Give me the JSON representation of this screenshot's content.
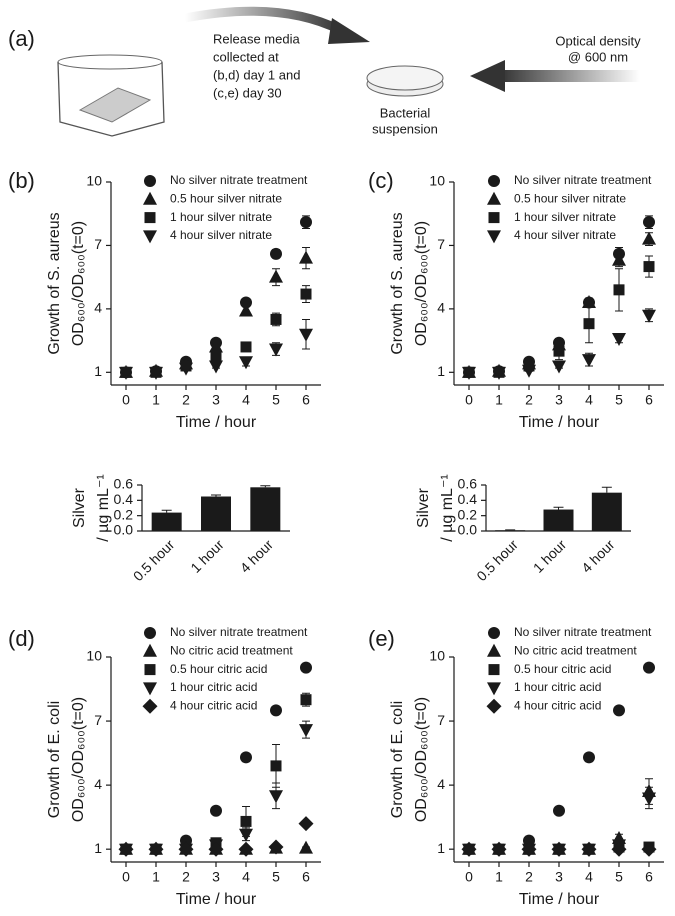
{
  "diagram": {
    "label": "(a)",
    "release_text": [
      "Release media",
      "collected at",
      "(b,d) day 1 and",
      "(c,e) day 30"
    ],
    "od_text": [
      "Optical density",
      "@ 600 nm"
    ],
    "suspension_text": [
      "Bacterial",
      "suspension"
    ]
  },
  "chart_data": [
    {
      "type": "scatter",
      "panel_label": "(b)",
      "xlabel": "Time / hour",
      "ylabel": [
        "Growth of S. aureus",
        "OD₆₀₀/OD₆₀₀(t=0)"
      ],
      "x": [
        0,
        1,
        2,
        3,
        4,
        5,
        6
      ],
      "xlim": [
        -0.5,
        6.5
      ],
      "xticks": [
        0,
        1,
        2,
        3,
        4,
        5,
        6
      ],
      "ylim": [
        0.4,
        10
      ],
      "yticks": [
        1,
        4,
        7,
        10
      ],
      "series": [
        {
          "name": "No silver nitrate treatment",
          "marker": "circle",
          "color": "#1a1a1a",
          "values": [
            1,
            1.05,
            1.5,
            2.4,
            4.3,
            6.6,
            8.1
          ],
          "errors": [
            0.05,
            0.1,
            0.1,
            0.15,
            0.15,
            0.2,
            0.3
          ]
        },
        {
          "name": "0.5 hour silver nitrate",
          "marker": "triangle-up",
          "color": "#1a1a1a",
          "values": [
            1,
            1.05,
            1.4,
            2.2,
            3.9,
            5.5,
            6.4
          ],
          "errors": [
            0.05,
            0.05,
            0.1,
            0.15,
            0.2,
            0.4,
            0.5
          ]
        },
        {
          "name": "1 hour silver nitrate",
          "marker": "square",
          "color": "#1a1a1a",
          "values": [
            1,
            1,
            1.3,
            1.8,
            2.2,
            3.5,
            4.7
          ],
          "errors": [
            0.05,
            0.05,
            0.1,
            0.1,
            0.2,
            0.3,
            0.4
          ]
        },
        {
          "name": "4 hour silver nitrate",
          "marker": "triangle-down",
          "color": "#1a1a1a",
          "values": [
            1,
            1,
            1.2,
            1.3,
            1.5,
            2.1,
            2.8
          ],
          "errors": [
            0.05,
            0.05,
            0.05,
            0.1,
            0.2,
            0.3,
            0.7
          ]
        }
      ]
    },
    {
      "type": "scatter",
      "panel_label": "(c)",
      "xlabel": "Time / hour",
      "ylabel": [
        "Growth of S. aureus",
        "OD₆₀₀/OD₆₀₀(t=0)"
      ],
      "x": [
        0,
        1,
        2,
        3,
        4,
        5,
        6
      ],
      "xlim": [
        -0.5,
        6.5
      ],
      "xticks": [
        0,
        1,
        2,
        3,
        4,
        5,
        6
      ],
      "ylim": [
        0.4,
        10
      ],
      "yticks": [
        1,
        4,
        7,
        10
      ],
      "series": [
        {
          "name": "No silver nitrate treatment",
          "marker": "circle",
          "color": "#1a1a1a",
          "values": [
            1,
            1.05,
            1.5,
            2.4,
            4.3,
            6.6,
            8.1
          ],
          "errors": [
            0.05,
            0.1,
            0.1,
            0.2,
            0.2,
            0.3,
            0.3
          ]
        },
        {
          "name": "0.5 hour silver nitrate",
          "marker": "triangle-up",
          "color": "#1a1a1a",
          "values": [
            1,
            1.05,
            1.4,
            2.3,
            4.3,
            6.3,
            7.3
          ],
          "errors": [
            0.05,
            0.05,
            0.1,
            0.3,
            0.2,
            0.3,
            0.3
          ]
        },
        {
          "name": "1 hour silver nitrate",
          "marker": "square",
          "color": "#1a1a1a",
          "values": [
            1,
            1,
            1.3,
            2,
            3.3,
            4.9,
            6
          ],
          "errors": [
            0.05,
            0.05,
            0.1,
            0.4,
            0.9,
            1,
            0.5
          ]
        },
        {
          "name": "4 hour silver nitrate",
          "marker": "triangle-down",
          "color": "#1a1a1a",
          "values": [
            1,
            1,
            1.1,
            1.3,
            1.6,
            2.6,
            3.7
          ],
          "errors": [
            0.05,
            0.05,
            0.05,
            0.1,
            0.3,
            0.2,
            0.3
          ]
        }
      ]
    },
    {
      "type": "bar",
      "ylabel": [
        "Silver",
        "/ µg mL⁻¹"
      ],
      "categories": [
        "0.5 hour",
        "1 hour",
        "4 hour"
      ],
      "values": [
        0.24,
        0.45,
        0.57
      ],
      "errors": [
        0.03,
        0.02,
        0.02
      ],
      "color": "#1a1a1a",
      "ylim": [
        0,
        0.6
      ],
      "yticks": [
        {
          "value": 0,
          "label": "0.0"
        },
        0.2,
        0.4,
        0.6
      ]
    },
    {
      "type": "bar",
      "ylabel": [
        "Silver",
        "/ µg mL⁻¹"
      ],
      "categories": [
        "0.5 hour",
        "1 hour",
        "4 hour"
      ],
      "values": [
        0.01,
        0.28,
        0.5
      ],
      "errors": [
        0.005,
        0.03,
        0.07
      ],
      "color": "#1a1a1a",
      "ylim": [
        0,
        0.6
      ],
      "yticks": [
        {
          "value": 0,
          "label": "0.0"
        },
        0.2,
        0.4,
        0.6
      ]
    },
    {
      "type": "scatter",
      "panel_label": "(d)",
      "xlabel": "Time / hour",
      "ylabel": [
        "Growth of E. coli",
        "OD₆₀₀/OD₆₀₀(t=0)"
      ],
      "x": [
        0,
        1,
        2,
        3,
        4,
        5,
        6
      ],
      "xlim": [
        -0.5,
        6.5
      ],
      "xticks": [
        0,
        1,
        2,
        3,
        4,
        5,
        6
      ],
      "ylim": [
        0.4,
        10
      ],
      "yticks": [
        1,
        4,
        7,
        10
      ],
      "series": [
        {
          "name": "No silver nitrate treatment",
          "marker": "circle",
          "color": "#1a1a1a",
          "values": [
            1,
            1,
            1.4,
            2.8,
            5.3,
            7.5,
            9.5
          ],
          "errors": [
            0.05,
            0.05,
            0.05,
            0.05,
            0.05,
            0.05,
            0.05
          ]
        },
        {
          "name": "No citric acid treatment",
          "marker": "triangle-up",
          "color": "#1a1a1a",
          "values": [
            1,
            1,
            1,
            1,
            1,
            1.05,
            1.05
          ],
          "errors": [
            0.05,
            0.05,
            0.05,
            0.05,
            0.05,
            0.05,
            0.05
          ]
        },
        {
          "name": "0.5 hour citric acid",
          "marker": "square",
          "color": "#1a1a1a",
          "values": [
            1,
            1,
            1.1,
            1.3,
            2.3,
            4.9,
            8
          ],
          "errors": [
            0.05,
            0.05,
            0.05,
            0.1,
            0.7,
            1,
            0.3
          ]
        },
        {
          "name": "1 hour citric acid",
          "marker": "triangle-down",
          "color": "#1a1a1a",
          "values": [
            1,
            1,
            1,
            1.2,
            1.7,
            3.5,
            6.6
          ],
          "errors": [
            0.05,
            0.1,
            0.05,
            0.1,
            0.3,
            0.6,
            0.4
          ]
        },
        {
          "name": "4 hour citric acid",
          "marker": "diamond",
          "color": "#1a1a1a",
          "values": [
            1,
            1,
            1,
            1,
            1,
            1.1,
            2.2
          ],
          "errors": [
            0.05,
            0.05,
            0.05,
            0.05,
            0.05,
            0.05,
            0.05
          ]
        }
      ]
    },
    {
      "type": "scatter",
      "panel_label": "(e)",
      "xlabel": "Time / hour",
      "ylabel": [
        "Growth of E. coli",
        "OD₆₀₀/OD₆₀₀(t=0)"
      ],
      "x": [
        0,
        1,
        2,
        3,
        4,
        5,
        6
      ],
      "xlim": [
        -0.5,
        6.5
      ],
      "xticks": [
        0,
        1,
        2,
        3,
        4,
        5,
        6
      ],
      "ylim": [
        0.4,
        10
      ],
      "yticks": [
        1,
        4,
        7,
        10
      ],
      "series": [
        {
          "name": "No silver nitrate treatment",
          "marker": "circle",
          "color": "#1a1a1a",
          "values": [
            1,
            1,
            1.4,
            2.8,
            5.3,
            7.5,
            9.5
          ],
          "errors": [
            0.05,
            0.05,
            0.05,
            0.05,
            0.05,
            0.05,
            0.05
          ]
        },
        {
          "name": "No citric acid treatment",
          "marker": "triangle-up",
          "color": "#1a1a1a",
          "values": [
            1,
            1,
            1,
            1,
            1,
            1.5,
            3.7
          ],
          "errors": [
            0.05,
            0.05,
            0.05,
            0.05,
            0.05,
            0.2,
            0.6
          ]
        },
        {
          "name": "0.5 hour citric acid",
          "marker": "square",
          "color": "#1a1a1a",
          "values": [
            1,
            1,
            1,
            1,
            1,
            1.1,
            1.1
          ],
          "errors": [
            0.05,
            0.05,
            0.05,
            0.05,
            0.05,
            0.05,
            0.05
          ]
        },
        {
          "name": "1 hour citric acid",
          "marker": "triangle-down",
          "color": "#1a1a1a",
          "values": [
            1,
            1,
            1,
            1,
            1,
            1.2,
            3.4
          ],
          "errors": [
            0.05,
            0.05,
            0.05,
            0.05,
            0.05,
            0.3,
            0.5
          ]
        },
        {
          "name": "4 hour citric acid",
          "marker": "diamond",
          "color": "#1a1a1a",
          "values": [
            1,
            1,
            1,
            1,
            1,
            1,
            1
          ],
          "errors": [
            0.05,
            0.05,
            0.05,
            0.05,
            0.05,
            0.05,
            0.05
          ]
        }
      ]
    }
  ]
}
